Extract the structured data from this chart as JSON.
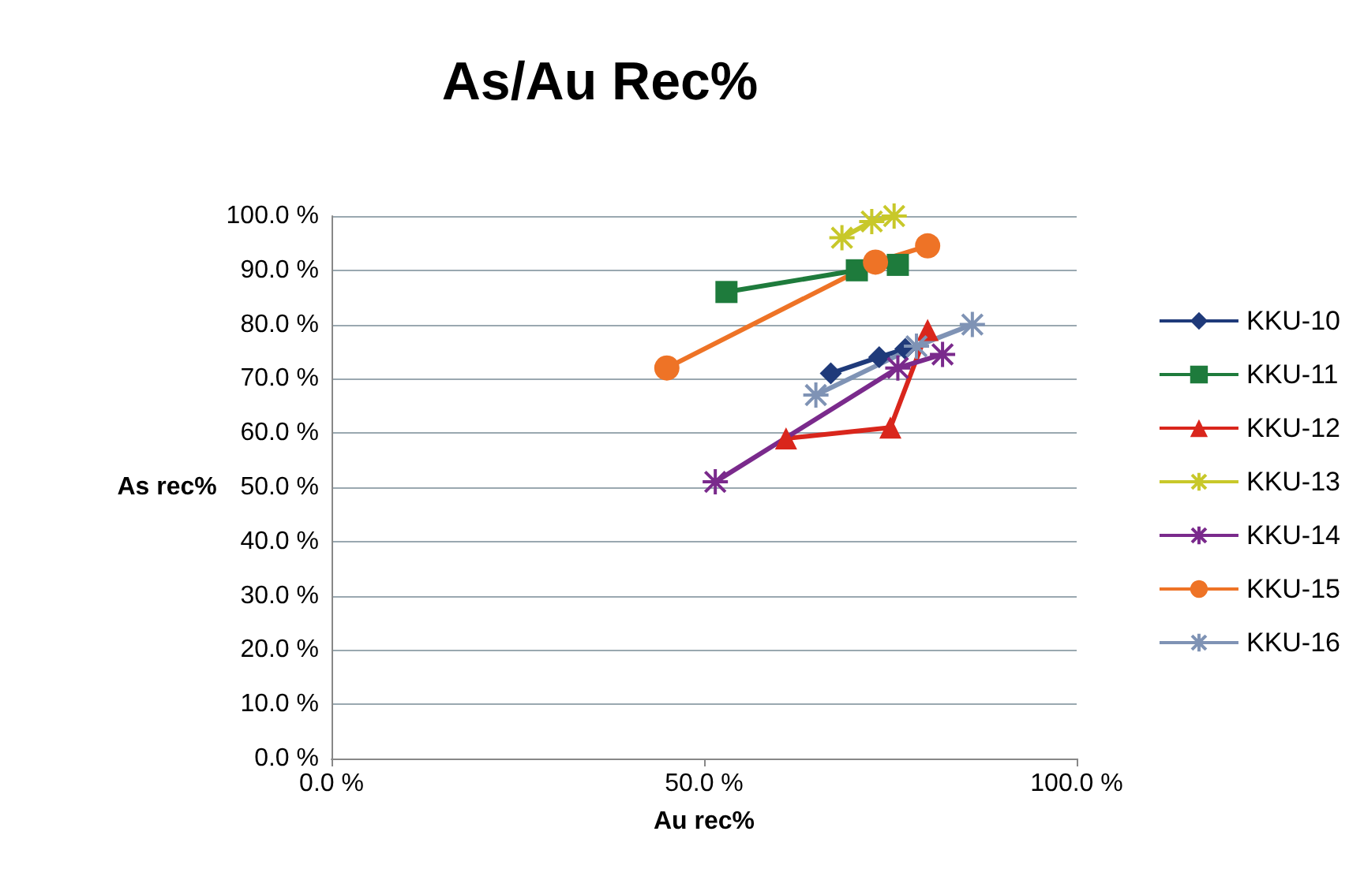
{
  "chart_data": {
    "type": "line",
    "title": "As/Au Rec%",
    "xlabel": "Au rec%",
    "ylabel": "As rec%",
    "xlim": [
      0,
      100
    ],
    "xticks": [
      {
        "value": 0,
        "label": "0.0 %"
      },
      {
        "value": 50,
        "label": "50.0 %"
      },
      {
        "value": 100,
        "label": "100.0 %"
      }
    ],
    "ylim": [
      0,
      100
    ],
    "yticks": [
      {
        "value": 0,
        "label": "0.0 %"
      },
      {
        "value": 10,
        "label": "10.0 %"
      },
      {
        "value": 20,
        "label": "20.0 %"
      },
      {
        "value": 30,
        "label": "30.0 %"
      },
      {
        "value": 40,
        "label": "40.0 %"
      },
      {
        "value": 50,
        "label": "50.0 %"
      },
      {
        "value": 60,
        "label": "60.0 %"
      },
      {
        "value": 70,
        "label": "70.0 %"
      },
      {
        "value": 80,
        "label": "80.0 %"
      },
      {
        "value": 90,
        "label": "90.0 %"
      },
      {
        "value": 100,
        "label": "100.0 %"
      }
    ],
    "grid": "y",
    "legend": "right",
    "line_style": "solid",
    "series": [
      {
        "name": "KKU-10",
        "color": "#1f3a7a",
        "marker": "diamond",
        "x": [
          67,
          73.5,
          77
        ],
        "values": [
          71,
          74,
          75.5
        ]
      },
      {
        "name": "KKU-11",
        "color": "#1e7b3c",
        "marker": "square",
        "x": [
          53,
          70.5,
          76
        ],
        "values": [
          86,
          90,
          91
        ]
      },
      {
        "name": "KKU-12",
        "color": "#d9261c",
        "marker": "triangle",
        "x": [
          61,
          75,
          80
        ],
        "values": [
          59,
          61,
          79
        ]
      },
      {
        "name": "KKU-13",
        "color": "#c8c82a",
        "marker": "cross",
        "x": [
          68.5,
          72.5,
          75.5
        ],
        "values": [
          96,
          99,
          100
        ]
      },
      {
        "name": "KKU-14",
        "color": "#7a2a8c",
        "marker": "cross",
        "x": [
          51.5,
          76,
          82
        ],
        "values": [
          51,
          72,
          74.5
        ]
      },
      {
        "name": "KKU-15",
        "color": "#ee7326",
        "marker": "circle",
        "x": [
          45,
          73,
          80
        ],
        "values": [
          72,
          91.5,
          94.5
        ]
      },
      {
        "name": "KKU-16",
        "color": "#7f93b5",
        "marker": "cross",
        "x": [
          65,
          78.5,
          86
        ],
        "values": [
          67,
          76,
          80
        ]
      }
    ]
  }
}
